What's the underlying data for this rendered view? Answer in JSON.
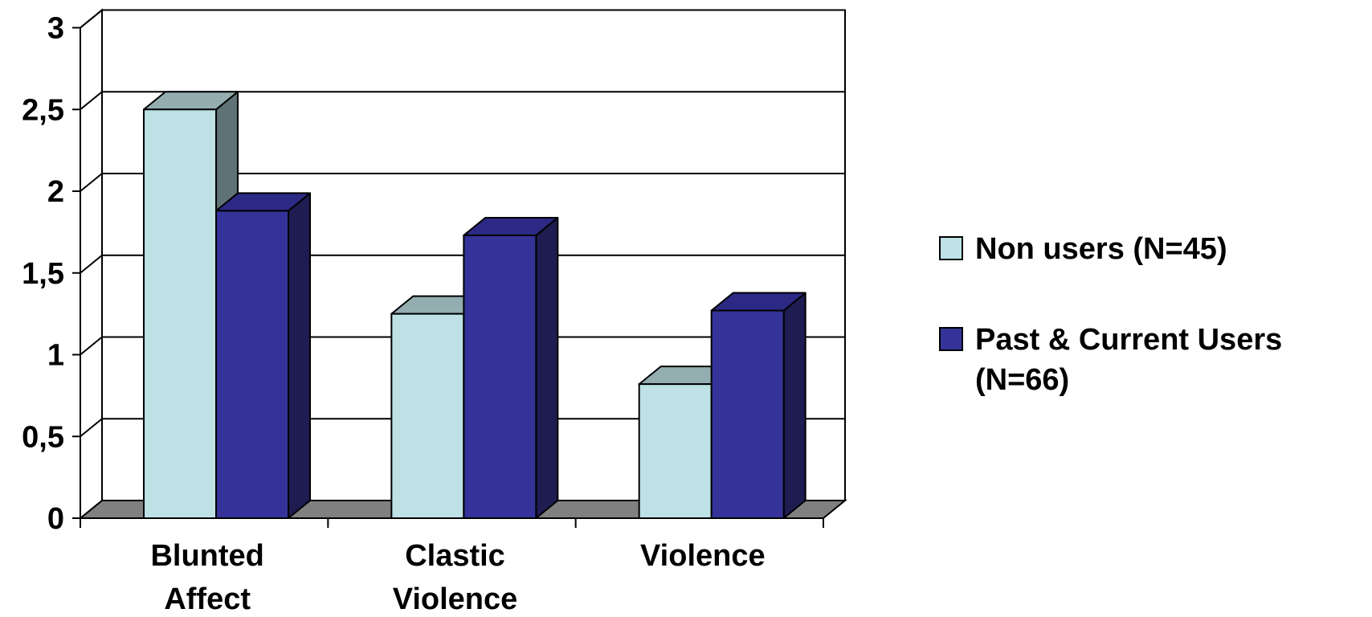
{
  "chart_data": {
    "type": "bar",
    "style": "3d-clustered-column",
    "categories": [
      "Blunted Affect",
      "Clastic Violence",
      "Violence"
    ],
    "category_lines": [
      [
        "Blunted",
        "Affect"
      ],
      [
        "Clastic",
        "Violence"
      ],
      [
        "Violence"
      ]
    ],
    "series": [
      {
        "name": "Non users (N=45)",
        "name_lines": [
          "Non users (N=45)"
        ],
        "values": [
          2.5,
          1.25,
          0.82
        ]
      },
      {
        "name": "Past & Current Users (N=66)",
        "name_lines": [
          "Past & Current Users",
          "(N=66)"
        ],
        "values": [
          1.88,
          1.73,
          1.27
        ]
      }
    ],
    "y_ticks": [
      "0",
      "0,5",
      "1",
      "1,5",
      "2",
      "2,5",
      "3"
    ],
    "ylim": [
      0,
      3
    ],
    "grid": true,
    "legend_position": "right",
    "colors": {
      "series": [
        {
          "front": "#bde1e5",
          "top": "#93adb0",
          "side": "#5f7275"
        },
        {
          "front": "#353399",
          "top": "#2c2a85",
          "side": "#1e1c50"
        }
      ],
      "floor": "#808080",
      "grid": "#000000"
    },
    "title": "",
    "xlabel": "",
    "ylabel": ""
  }
}
